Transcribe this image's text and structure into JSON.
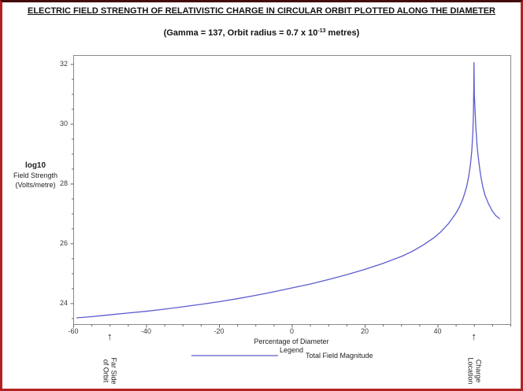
{
  "window": {
    "background": "#ffffff",
    "border_color": "#b32222",
    "border_top_color": "#420c0c"
  },
  "header": {
    "title": "ELECTRIC FIELD STRENGTH OF RELATIVISTIC CHARGE IN CIRCULAR ORBIT PLOTTED ALONG THE DIAMETER",
    "subtitle_prefix": "(Gamma = 137, Orbit radius = 0.7 x 10",
    "subtitle_superscript": "-13",
    "subtitle_suffix": " metres)"
  },
  "y_axis": {
    "label_lines": [
      "log10",
      "Field Strength",
      "(Volts/metre)"
    ],
    "ticks": [
      24,
      26,
      28,
      30,
      32
    ],
    "minor_step": 0.5,
    "range": [
      23.3,
      32.3
    ]
  },
  "x_axis": {
    "title": "Percentage of Diameter",
    "ticks": [
      -60,
      -40,
      -20,
      0,
      20,
      40
    ],
    "minor_step": 5,
    "range": [
      -60,
      60
    ]
  },
  "legend": {
    "title": "Legend",
    "entries": [
      {
        "label": "Total Field Magnitude",
        "color": "#5c5ccf"
      }
    ]
  },
  "markers": [
    {
      "arrow": "↑",
      "x": -50,
      "line1": "Far Side",
      "line2": "of Orbit"
    },
    {
      "arrow": "↑",
      "x": 50,
      "line1": "Charge",
      "line2": "Location"
    }
  ],
  "chart_data": {
    "type": "line",
    "title": "ELECTRIC FIELD STRENGTH OF RELATIVISTIC CHARGE IN CIRCULAR ORBIT PLOTTED ALONG THE DIAMETER",
    "subtitle": "(Gamma = 137, Orbit radius = 0.7 x 10^-13 metres)",
    "xlabel": "Percentage of Diameter",
    "ylabel": "log10 Field Strength (Volts/metre)",
    "xlim": [
      -60,
      60
    ],
    "ylim": [
      23.3,
      32.3
    ],
    "grid": false,
    "legend_position": "bottom",
    "annotations": [
      {
        "x": -50,
        "text": "Far Side of Orbit"
      },
      {
        "x": 50,
        "text": "Charge Location"
      }
    ],
    "series": [
      {
        "name": "Total Field Magnitude",
        "color": "#5c5ccf",
        "points": [
          [
            -59,
            23.51
          ],
          [
            -55,
            23.55
          ],
          [
            -50,
            23.61
          ],
          [
            -45,
            23.67
          ],
          [
            -40,
            23.73
          ],
          [
            -35,
            23.8
          ],
          [
            -30,
            23.88
          ],
          [
            -25,
            23.96
          ],
          [
            -20,
            24.05
          ],
          [
            -15,
            24.15
          ],
          [
            -10,
            24.26
          ],
          [
            -5,
            24.38
          ],
          [
            0,
            24.51
          ],
          [
            5,
            24.64
          ],
          [
            10,
            24.79
          ],
          [
            15,
            24.95
          ],
          [
            20,
            25.13
          ],
          [
            25,
            25.33
          ],
          [
            30,
            25.56
          ],
          [
            33,
            25.73
          ],
          [
            36,
            25.94
          ],
          [
            39,
            26.19
          ],
          [
            41,
            26.4
          ],
          [
            43,
            26.66
          ],
          [
            45,
            27.0
          ],
          [
            46,
            27.22
          ],
          [
            47,
            27.5
          ],
          [
            48,
            27.9
          ],
          [
            48.5,
            28.2
          ],
          [
            49,
            28.6
          ],
          [
            49.4,
            29.1
          ],
          [
            49.7,
            29.75
          ],
          [
            49.85,
            30.4
          ],
          [
            49.95,
            31.2
          ],
          [
            50,
            32.05
          ],
          [
            50.1,
            31.0
          ],
          [
            50.2,
            30.7
          ],
          [
            50.5,
            29.9
          ],
          [
            50.9,
            29.2
          ],
          [
            51.3,
            28.75
          ],
          [
            51.8,
            28.3
          ],
          [
            52.4,
            27.9
          ],
          [
            53,
            27.62
          ],
          [
            54,
            27.32
          ],
          [
            55,
            27.09
          ],
          [
            56,
            26.93
          ],
          [
            57,
            26.83
          ]
        ]
      }
    ]
  }
}
